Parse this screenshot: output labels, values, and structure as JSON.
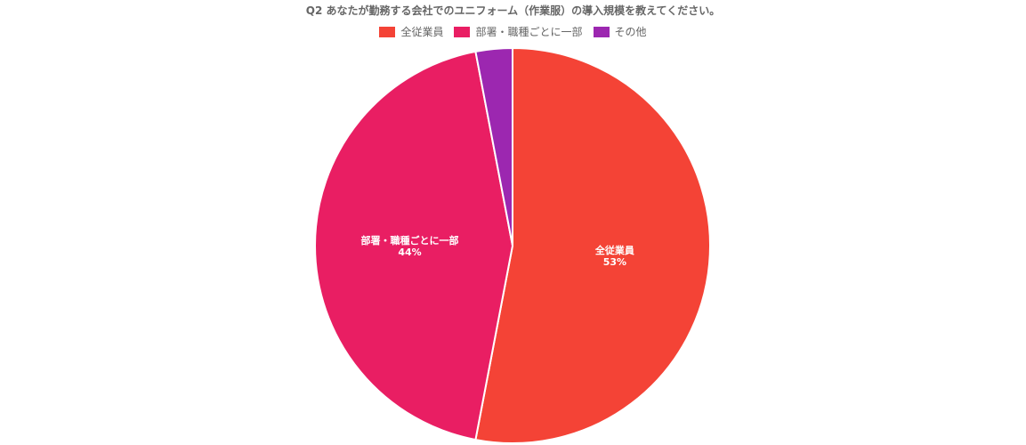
{
  "chart_data": {
    "type": "pie",
    "title": "Q2 あなたが勤務する会社でのユニフォーム（作業服）の導入規模を教えてください。",
    "legend_position": "top",
    "slices": [
      {
        "label": "全従業員",
        "value": 53,
        "value_label": "53%",
        "color": "#f44336"
      },
      {
        "label": "部署・職種ごとに一部",
        "value": 44,
        "value_label": "44%",
        "color": "#e91e63"
      },
      {
        "label": "その他",
        "value": 3,
        "value_label": "",
        "color": "#9c27b0"
      }
    ]
  }
}
